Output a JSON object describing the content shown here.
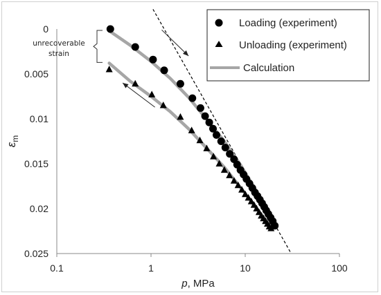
{
  "chart_data": {
    "type": "scatter",
    "xscale": "log",
    "xlim": [
      0.1,
      100
    ],
    "ylim": [
      0,
      0.025
    ],
    "y_inverted": true,
    "xticks": [
      "0.1",
      "1",
      "10",
      "100"
    ],
    "yticks": [
      "0",
      "0.005",
      "0.01",
      "0.015",
      "0.02",
      "0.025"
    ],
    "xlabel_italic": "p",
    "xlabel_rest": ", MPa",
    "ylabel_italic": "ε",
    "ylabel_sub": "m",
    "legend_position": "top-right",
    "colors": {
      "loading": "#000000",
      "unloading": "#000000",
      "calculation": "#a6a6a6",
      "dashed_line": "#000000"
    },
    "series": [
      {
        "name": "Loading (experiment)",
        "marker": "circle",
        "x": [
          0.37,
          0.68,
          1.05,
          1.38,
          2.05,
          2.75,
          3.35,
          3.75,
          4.15,
          4.55,
          4.95,
          5.55,
          6.15,
          6.85,
          7.6,
          8.2,
          8.9,
          9.6,
          10.3,
          11.1,
          11.9,
          12.7,
          13.5,
          14.3,
          15.1,
          15.9,
          16.7,
          17.6,
          18.6,
          19.6,
          20.6
        ],
        "y": [
          0.0,
          0.002,
          0.0034,
          0.0046,
          0.0061,
          0.0077,
          0.0088,
          0.0097,
          0.0104,
          0.0111,
          0.0118,
          0.0125,
          0.0132,
          0.0139,
          0.0145,
          0.0151,
          0.0157,
          0.0162,
          0.0167,
          0.0172,
          0.0177,
          0.0182,
          0.0186,
          0.019,
          0.0194,
          0.0198,
          0.0202,
          0.0206,
          0.021,
          0.0214,
          0.0219
        ]
      },
      {
        "name": "Unloading (experiment)",
        "marker": "triangle",
        "x": [
          0.36,
          0.68,
          1.02,
          1.35,
          2.05,
          2.7,
          3.3,
          3.9,
          4.6,
          5.3,
          6.0,
          6.8,
          7.6,
          8.4,
          9.2,
          10.0,
          10.8,
          11.6,
          12.4,
          13.2,
          14.0,
          14.8,
          15.6,
          16.4,
          17.2,
          18.0,
          18.8
        ],
        "y": [
          0.0045,
          0.0061,
          0.0073,
          0.0085,
          0.0098,
          0.0113,
          0.0124,
          0.0133,
          0.0142,
          0.015,
          0.0157,
          0.0163,
          0.0169,
          0.0174,
          0.0179,
          0.0184,
          0.0188,
          0.0192,
          0.0196,
          0.02,
          0.0204,
          0.0208,
          0.0211,
          0.0214,
          0.0217,
          0.022,
          0.0222
        ]
      },
      {
        "name": "Calculation",
        "marker": "line",
        "x": [
          0.36,
          0.6,
          1.0,
          1.6,
          2.5,
          4.0,
          6.0,
          9.0,
          13.0,
          17.0,
          20.0
        ],
        "y": [
          0.0002,
          0.0018,
          0.0036,
          0.0055,
          0.0076,
          0.0102,
          0.0125,
          0.0152,
          0.018,
          0.0202,
          0.0216
        ]
      },
      {
        "marker": "line",
        "x": [
          0.36,
          0.6,
          1.0,
          1.6,
          2.5,
          4.0,
          6.0,
          9.0,
          13.0,
          17.0,
          19.0
        ],
        "y": [
          0.0038,
          0.0058,
          0.0075,
          0.0092,
          0.0111,
          0.0134,
          0.0154,
          0.0177,
          0.0199,
          0.0214,
          0.0221
        ]
      }
    ],
    "dashed_line": {
      "x": [
        1.05,
        30
      ],
      "y": [
        -0.0022,
        0.0248
      ]
    },
    "annotations": {
      "bracket_text_1": "unrecoverable",
      "bracket_text_2": "strain",
      "bracket_y": [
        0.0,
        0.0038
      ],
      "arrow_loading": {
        "x": [
          1.3,
          2.5
        ],
        "y": [
          0.0001,
          0.003
        ]
      },
      "arrow_unloading": {
        "x": [
          1.1,
          0.5
        ],
        "y": [
          0.0087,
          0.006
        ]
      }
    }
  }
}
